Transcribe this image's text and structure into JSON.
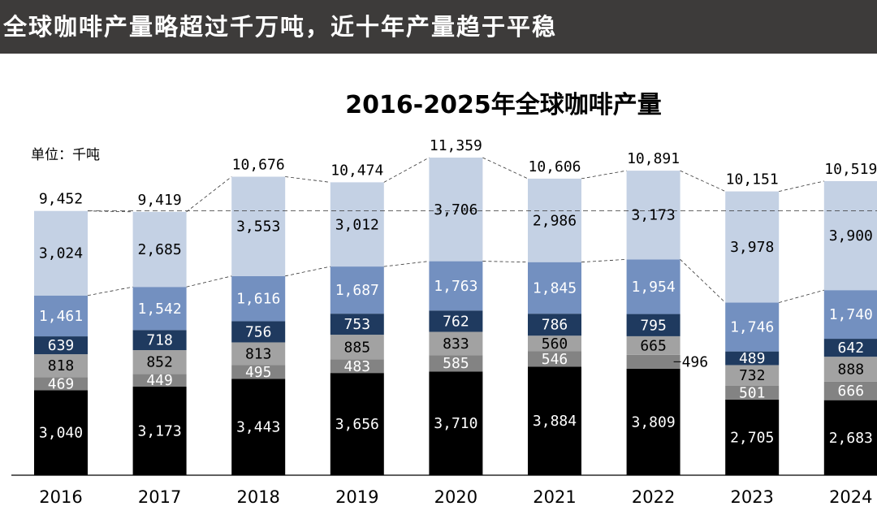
{
  "header": {
    "banner_title": "全球咖啡产量略超过千万吨，近十年产量趋于平稳"
  },
  "colors": {
    "banner_bg": "#3d3b3a",
    "segment_colors": [
      "#000000",
      "#838383",
      "#a2a2a2",
      "#1f3a5f",
      "#7390c0",
      "#c4d1e4"
    ]
  },
  "chart_data": {
    "type": "bar",
    "stacked": true,
    "title": "2016-2025年全球咖啡产量",
    "unit_label": "单位：千吨",
    "categories": [
      "2016",
      "2017",
      "2018",
      "2019",
      "2020",
      "2021",
      "2022",
      "2023",
      "2024"
    ],
    "ylim": [
      0,
      12000
    ],
    "grid": false,
    "series": [
      {
        "values": [
          3040,
          3173,
          3443,
          3656,
          3710,
          3884,
          3809,
          2705,
          2683
        ],
        "labels": [
          "3,040",
          "3,173",
          "3,443",
          "3,656",
          "3,710",
          "3,884",
          "3,809",
          "2,705",
          "2,683"
        ]
      },
      {
        "values": [
          469,
          449,
          495,
          483,
          585,
          546,
          496,
          501,
          666
        ],
        "labels": [
          "469",
          "449",
          "495",
          "483",
          "585",
          "546",
          "496",
          "501",
          "666"
        ]
      },
      {
        "values": [
          818,
          852,
          813,
          885,
          833,
          560,
          665,
          732,
          888
        ],
        "labels": [
          "818",
          "852",
          "813",
          "885",
          "833",
          "560",
          "665",
          "732",
          "888"
        ]
      },
      {
        "values": [
          639,
          718,
          756,
          753,
          762,
          786,
          795,
          489,
          642
        ],
        "labels": [
          "639",
          "718",
          "756",
          "753",
          "762",
          "786",
          "795",
          "489",
          "642"
        ]
      },
      {
        "values": [
          1461,
          1542,
          1616,
          1687,
          1763,
          1845,
          1954,
          1746,
          1740
        ],
        "labels": [
          "1,461",
          "1,542",
          "1,616",
          "1,687",
          "1,763",
          "1,845",
          "1,954",
          "1,746",
          "1,740"
        ]
      },
      {
        "values": [
          3024,
          2685,
          3553,
          3012,
          3706,
          2986,
          3173,
          3978,
          3900
        ],
        "labels": [
          "3,024",
          "2,685",
          "3,553",
          "3,012",
          "3,706",
          "2,986",
          "3,173",
          "3,978",
          "3,900"
        ]
      }
    ],
    "totals": [
      9452,
      9419,
      10676,
      10474,
      11359,
      10606,
      10891,
      10151,
      10519
    ],
    "total_labels": [
      "9,452",
      "9,419",
      "10,676",
      "10,474",
      "11,359",
      "10,606",
      "10,891",
      "10,151",
      "10,519"
    ],
    "reference_value": 9452
  }
}
